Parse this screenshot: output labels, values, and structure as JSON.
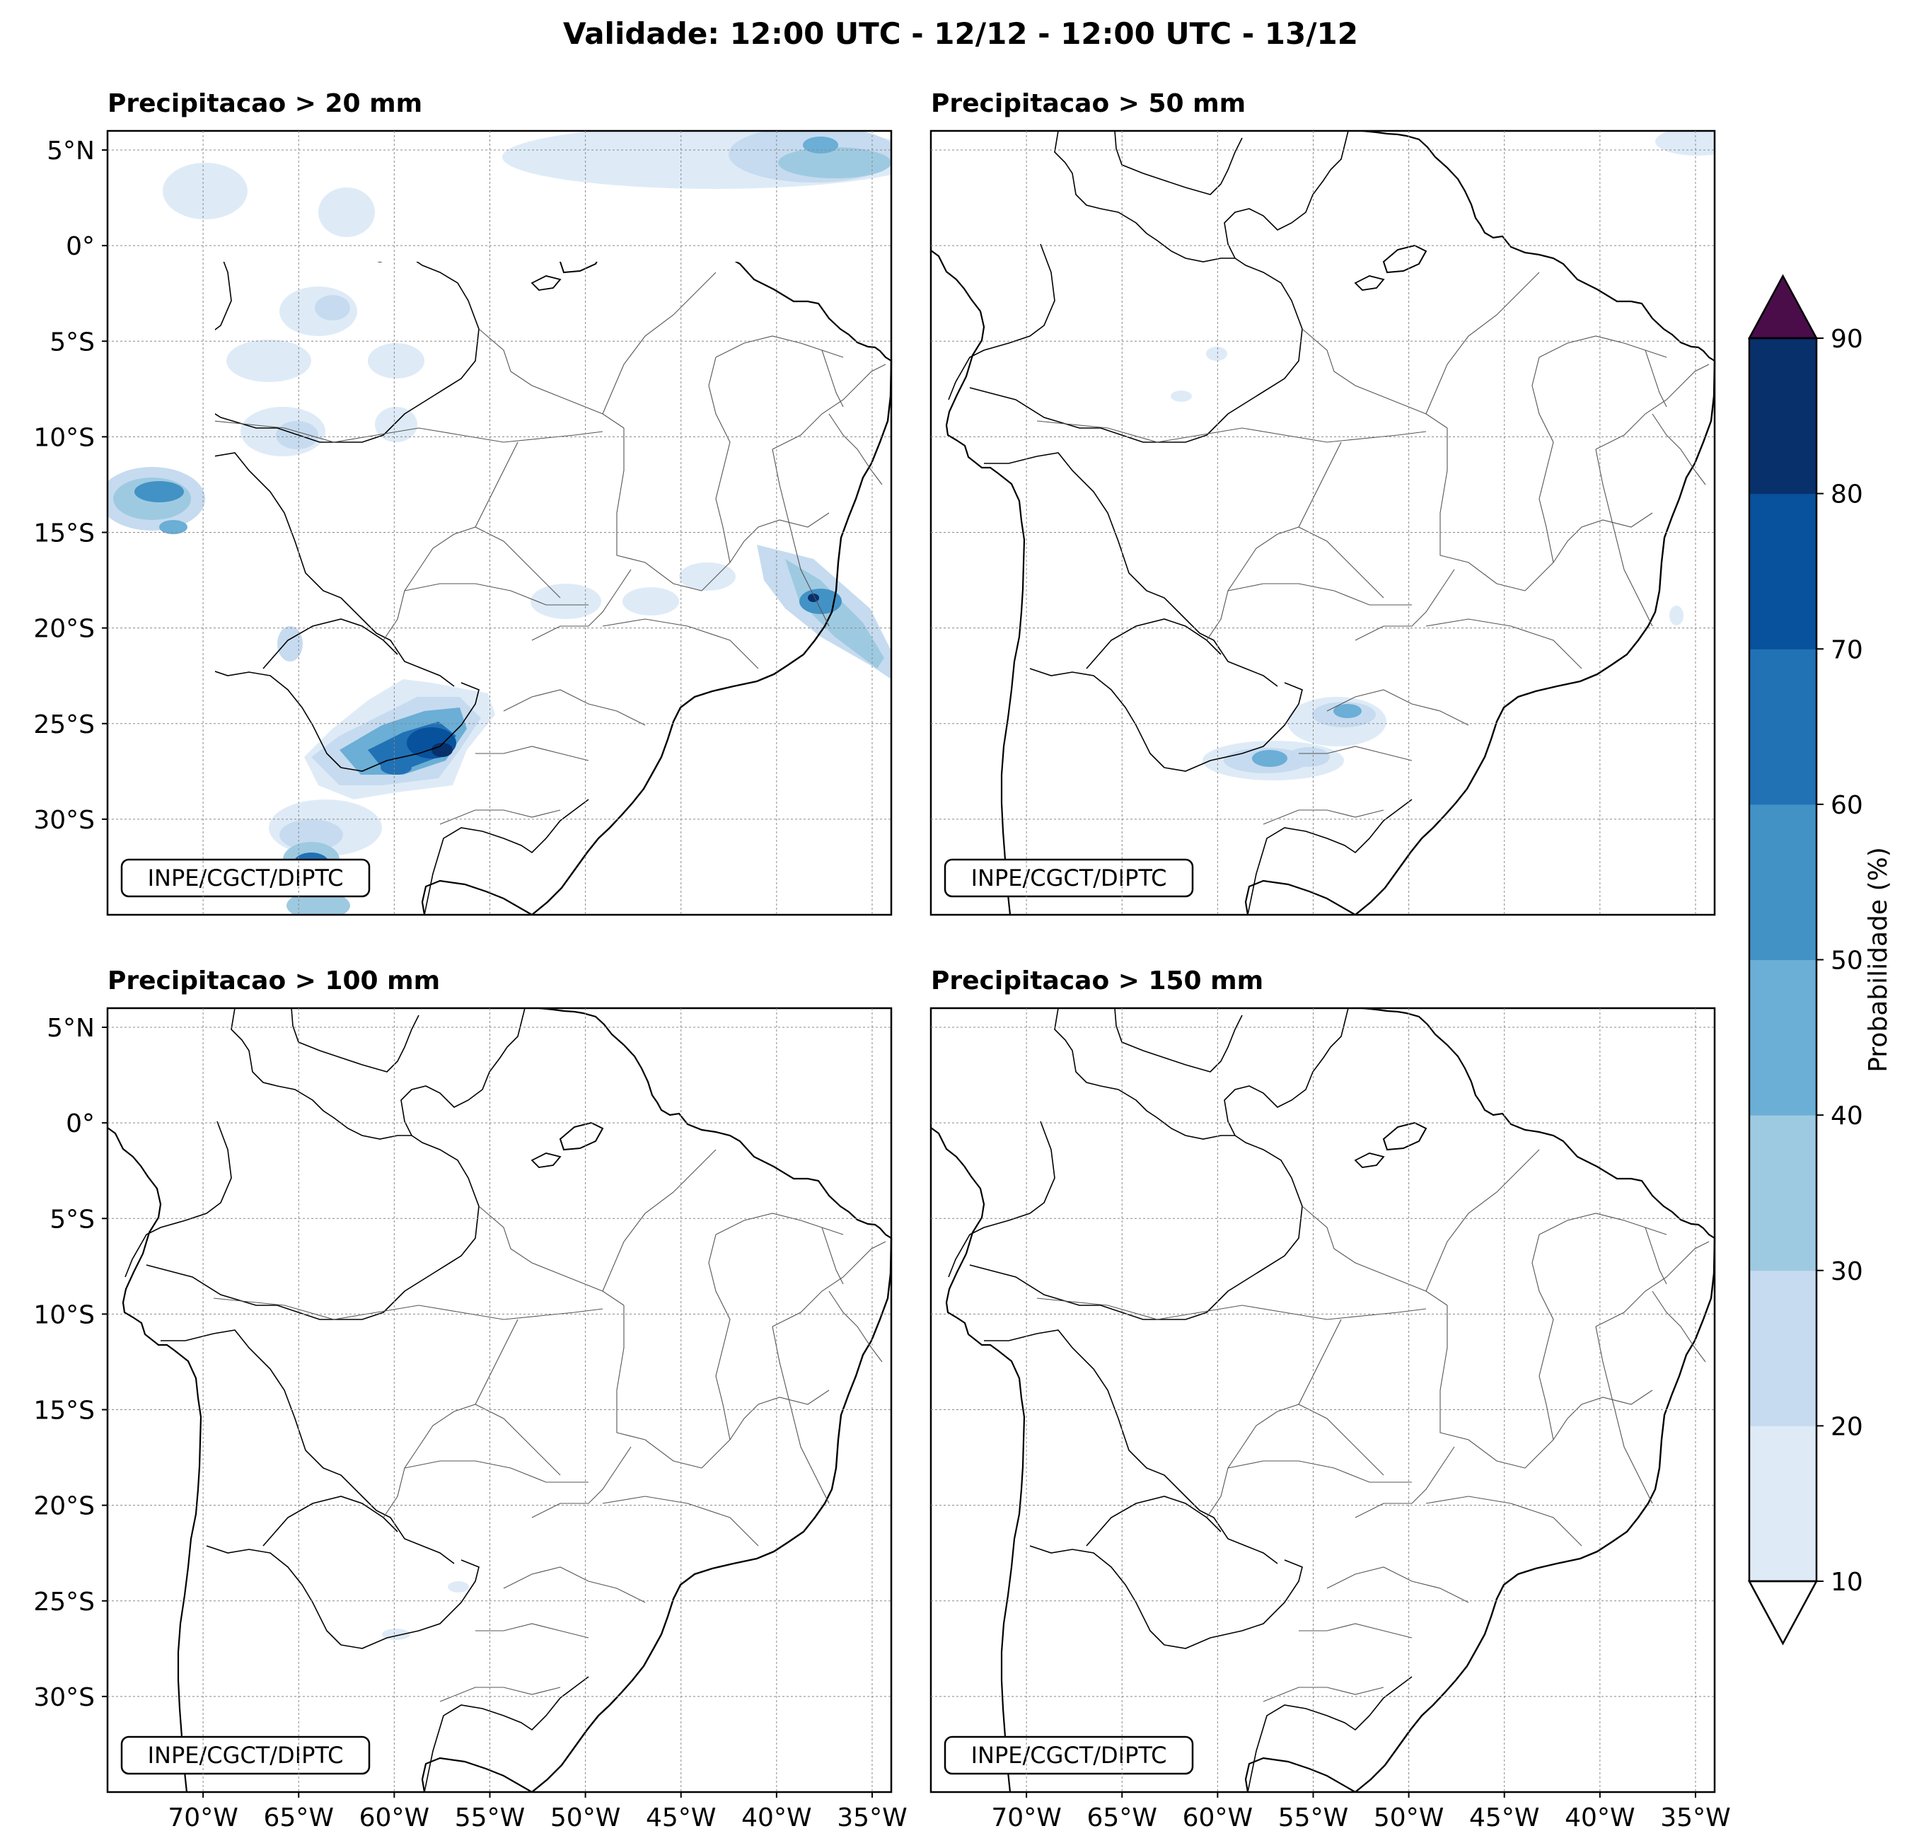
{
  "figure": {
    "suptitle": "Validade: 12:00 UTC - 12/12 - 12:00 UTC - 13/12"
  },
  "panels": [
    {
      "title": "Precipitacao > 20 mm",
      "credit": "INPE/CGCT/DIPTC"
    },
    {
      "title": "Precipitacao > 50 mm",
      "credit": "INPE/CGCT/DIPTC"
    },
    {
      "title": "Precipitacao > 100 mm",
      "credit": "INPE/CGCT/DIPTC"
    },
    {
      "title": "Precipitacao > 150 mm",
      "credit": "INPE/CGCT/DIPTC"
    }
  ],
  "axes": {
    "lat_ticks": [
      "5°N",
      "0°",
      "5°S",
      "10°S",
      "15°S",
      "20°S",
      "25°S",
      "30°S"
    ],
    "lon_ticks": [
      "70°W",
      "65°W",
      "60°W",
      "55°W",
      "50°W",
      "45°W",
      "40°W",
      "35°W"
    ],
    "lon_range": [
      -75,
      -34
    ],
    "lat_range": [
      -35,
      6
    ]
  },
  "colorbar": {
    "label": "Probabilidade (%)",
    "ticks": [
      "10",
      "20",
      "30",
      "40",
      "50",
      "60",
      "70",
      "80",
      "90"
    ],
    "colors": [
      "#deebf7",
      "#c6dbef",
      "#9ecae1",
      "#6baed6",
      "#4292c6",
      "#2171b5",
      "#08519c",
      "#08306b"
    ],
    "over_color": "#4a0d4a",
    "under_color": "#ffffff"
  }
}
